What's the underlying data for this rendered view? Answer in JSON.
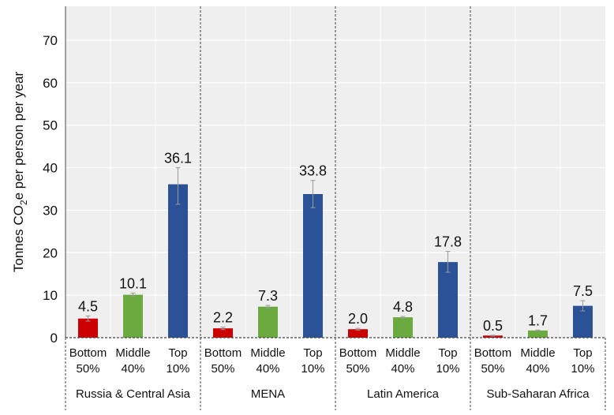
{
  "chart_data": {
    "type": "bar",
    "ylabel": "Tonnes CO2e per person per year",
    "ylabel_parts": {
      "pre": "Tonnes CO",
      "sub": "2",
      "post": "e per person per year"
    },
    "ylim": [
      0,
      70
    ],
    "yticks": [
      0,
      10,
      20,
      30,
      40,
      50,
      60,
      70
    ],
    "grid": true,
    "subcategories": [
      {
        "line1": "Bottom",
        "line2": "50%"
      },
      {
        "line1": "Middle",
        "line2": "40%"
      },
      {
        "line1": "Top",
        "line2": "10%"
      }
    ],
    "groups": [
      {
        "name": "Russia & Central Asia",
        "values": [
          4.5,
          10.1,
          36.1
        ],
        "labels": [
          "4.5",
          "10.1",
          "36.1"
        ],
        "err": [
          [
            3.9,
            5.1
          ],
          [
            9.7,
            10.5
          ],
          [
            31.4,
            40.0
          ]
        ]
      },
      {
        "name": "MENA",
        "values": [
          2.2,
          7.3,
          33.8
        ],
        "labels": [
          "2.2",
          "7.3",
          "33.8"
        ],
        "err": [
          [
            1.9,
            2.5
          ],
          [
            7.0,
            7.6
          ],
          [
            30.6,
            37.0
          ]
        ]
      },
      {
        "name": "Latin America",
        "values": [
          2.0,
          4.8,
          17.8
        ],
        "labels": [
          "2.0",
          "4.8",
          "17.8"
        ],
        "err": [
          [
            1.8,
            2.2
          ],
          [
            4.6,
            5.0
          ],
          [
            15.4,
            20.3
          ]
        ]
      },
      {
        "name": "Sub-Saharan Africa",
        "values": [
          0.5,
          1.7,
          7.5
        ],
        "labels": [
          "0.5",
          "1.7",
          "7.5"
        ],
        "err": [
          [
            0.4,
            0.6
          ],
          [
            1.6,
            1.8
          ],
          [
            6.3,
            8.7
          ]
        ]
      }
    ],
    "colors": [
      "#cc0000",
      "#6aaa3f",
      "#2b5297"
    ]
  }
}
